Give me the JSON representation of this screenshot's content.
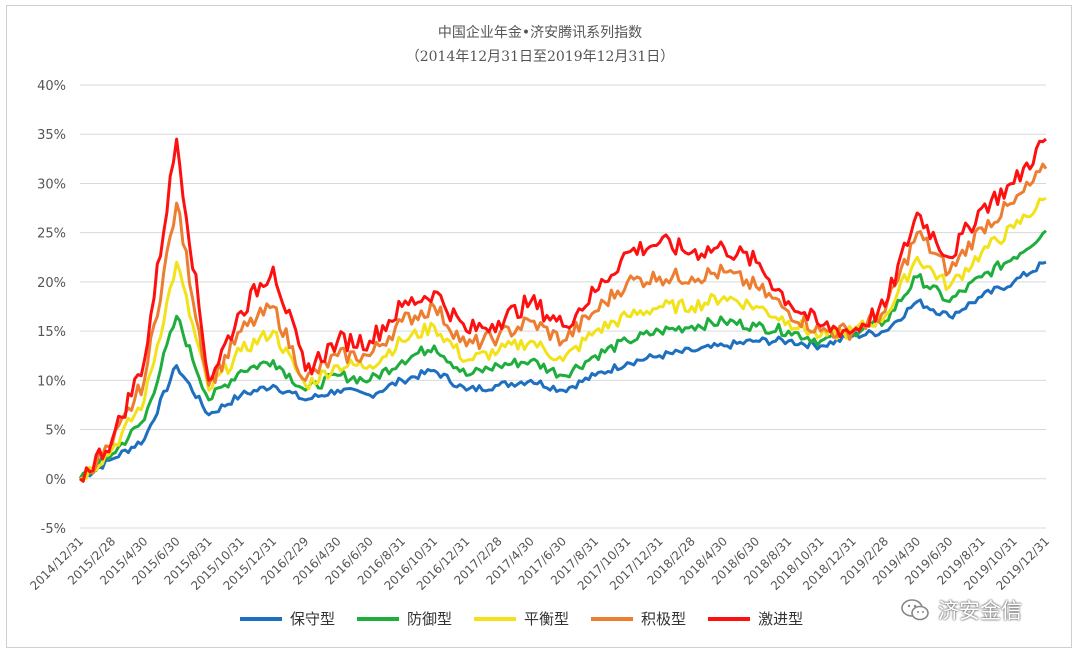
{
  "chart_data": {
    "type": "line",
    "title": "中国企业年金•济安腾讯系列指数",
    "subtitle": "（2014年12月31日至2019年12月31日）",
    "ylim": [
      -0.05,
      0.4
    ],
    "yticks": [
      "40%",
      "35%",
      "30%",
      "25%",
      "20%",
      "15%",
      "10%",
      "5%",
      "0%",
      "-5%"
    ],
    "ytick_values": [
      0.4,
      0.35,
      0.3,
      0.25,
      0.2,
      0.15,
      0.1,
      0.05,
      0.0,
      -0.05
    ],
    "grid": true,
    "legend_position": "bottom",
    "x": [
      "2014/12/31",
      "2015/2/28",
      "2015/4/30",
      "2015/6/30",
      "2015/8/31",
      "2015/10/31",
      "2015/12/31",
      "2016/2/29",
      "2016/4/30",
      "2016/6/30",
      "2016/8/31",
      "2016/10/31",
      "2016/12/31",
      "2017/2/28",
      "2017/4/30",
      "2017/6/30",
      "2017/8/31",
      "2017/10/31",
      "2017/12/31",
      "2018/2/28",
      "2018/4/30",
      "2018/6/30",
      "2018/8/31",
      "2018/10/31",
      "2018/12/31",
      "2019/2/28",
      "2019/4/30",
      "2019/6/30",
      "2019/8/31",
      "2019/10/31",
      "2019/12/31"
    ],
    "series": [
      {
        "name": "保守型",
        "color": "#1f6fc0",
        "values": [
          0.0,
          0.02,
          0.04,
          0.115,
          0.065,
          0.085,
          0.095,
          0.08,
          0.09,
          0.085,
          0.1,
          0.11,
          0.09,
          0.095,
          0.1,
          0.09,
          0.105,
          0.118,
          0.125,
          0.13,
          0.135,
          0.14,
          0.14,
          0.135,
          0.145,
          0.15,
          0.18,
          0.165,
          0.185,
          0.2,
          0.22
        ]
      },
      {
        "name": "防御型",
        "color": "#1fae3e",
        "values": [
          0.0,
          0.025,
          0.06,
          0.165,
          0.08,
          0.11,
          0.12,
          0.09,
          0.105,
          0.1,
          0.12,
          0.135,
          0.105,
          0.115,
          0.12,
          0.105,
          0.125,
          0.14,
          0.15,
          0.155,
          0.16,
          0.155,
          0.15,
          0.14,
          0.148,
          0.16,
          0.205,
          0.18,
          0.205,
          0.225,
          0.252
        ]
      },
      {
        "name": "平衡型",
        "color": "#f1e219",
        "values": [
          0.0,
          0.03,
          0.08,
          0.22,
          0.09,
          0.13,
          0.15,
          0.095,
          0.115,
          0.115,
          0.14,
          0.155,
          0.12,
          0.13,
          0.14,
          0.12,
          0.15,
          0.165,
          0.175,
          0.175,
          0.185,
          0.175,
          0.16,
          0.145,
          0.15,
          0.165,
          0.225,
          0.195,
          0.23,
          0.255,
          0.285
        ]
      },
      {
        "name": "积极型",
        "color": "#ed7d31",
        "values": [
          0.0,
          0.035,
          0.1,
          0.28,
          0.095,
          0.15,
          0.175,
          0.1,
          0.125,
          0.125,
          0.16,
          0.175,
          0.135,
          0.145,
          0.16,
          0.14,
          0.17,
          0.2,
          0.205,
          0.205,
          0.21,
          0.195,
          0.17,
          0.15,
          0.15,
          0.17,
          0.25,
          0.21,
          0.255,
          0.28,
          0.315
        ]
      },
      {
        "name": "激进型",
        "color": "#ff1010",
        "values": [
          0.0,
          0.04,
          0.12,
          0.345,
          0.1,
          0.17,
          0.215,
          0.11,
          0.14,
          0.14,
          0.175,
          0.19,
          0.15,
          0.16,
          0.18,
          0.155,
          0.19,
          0.23,
          0.24,
          0.23,
          0.235,
          0.22,
          0.18,
          0.155,
          0.15,
          0.175,
          0.27,
          0.225,
          0.275,
          0.3,
          0.345
        ]
      }
    ]
  },
  "watermark": {
    "text": "济安金信",
    "icon": "wechat-icon"
  }
}
